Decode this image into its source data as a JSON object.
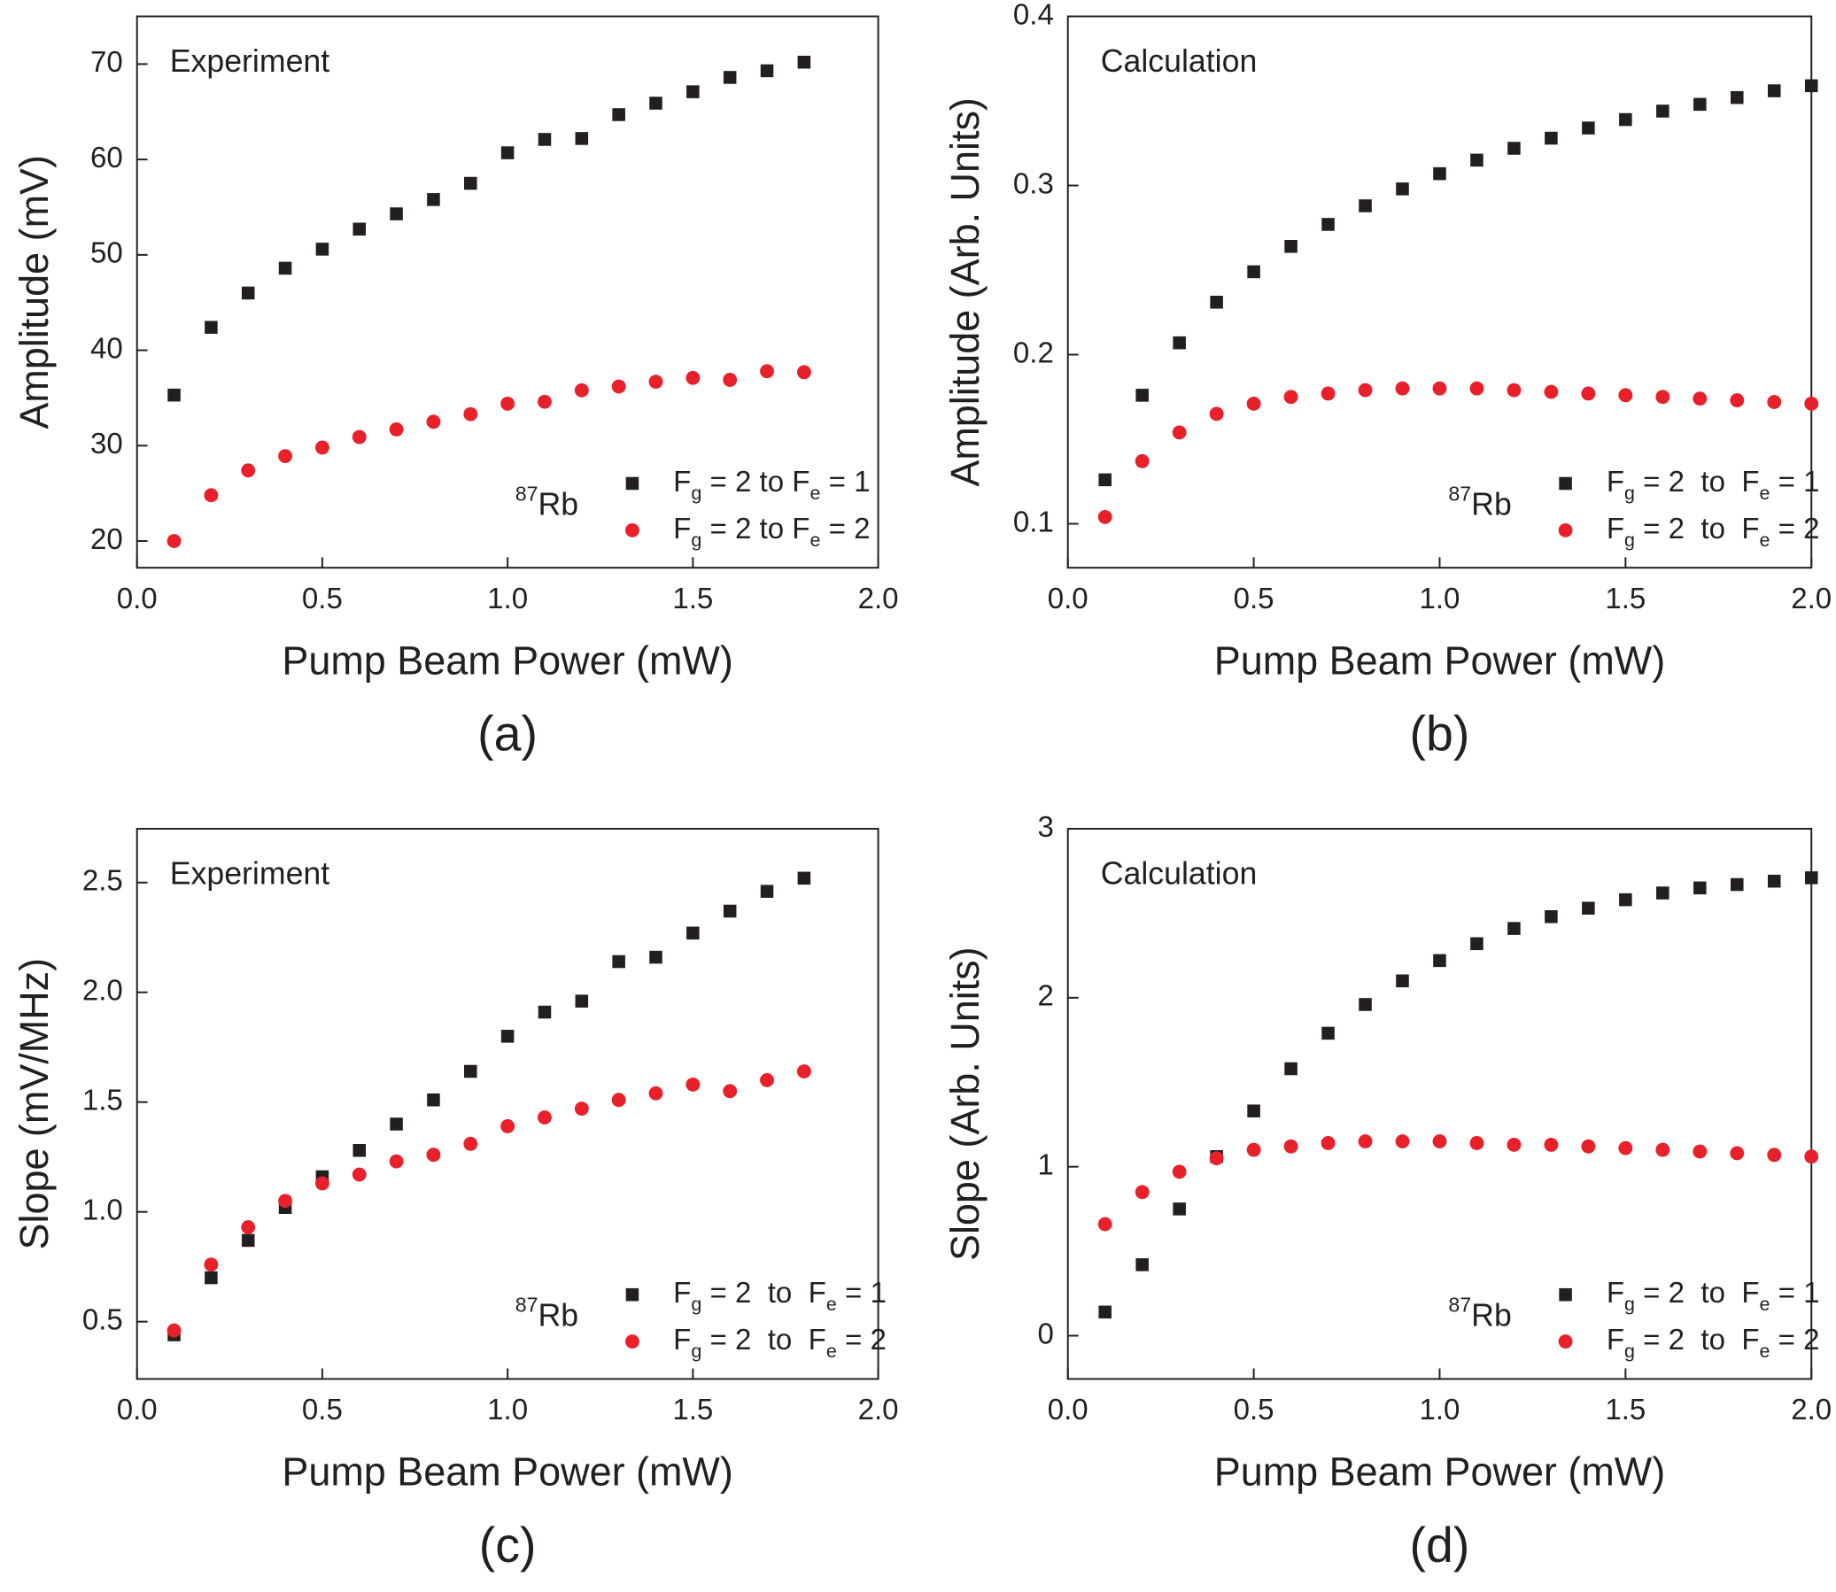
{
  "chart_data": [
    {
      "type": "scatter",
      "annotation": "Experiment",
      "note": "87Rb",
      "panel_label": "(a)",
      "xlabel": "Pump Beam Power (mW)",
      "ylabel": "Amplitude (mV)",
      "x": [
        0.1,
        0.2,
        0.3,
        0.4,
        0.5,
        0.6,
        0.7,
        0.8,
        0.9,
        1.0,
        1.1,
        1.2,
        1.3,
        1.4,
        1.5,
        1.6,
        1.7,
        1.8
      ],
      "series": [
        {
          "name": "Fg = 2 to Fe = 1",
          "color": "#231f20",
          "marker": "square",
          "values": [
            35.3,
            42.4,
            46,
            48.6,
            50.6,
            52.7,
            54.3,
            55.8,
            57.5,
            60.7,
            62.1,
            62.2,
            64.7,
            65.9,
            67.1,
            68.6,
            69.3,
            70.2
          ]
        },
        {
          "name": "Fg = 2 to Fe = 2",
          "color": "#e8202a",
          "marker": "circle",
          "values": [
            20,
            24.8,
            27.4,
            28.9,
            29.8,
            30.9,
            31.7,
            32.5,
            33.3,
            34.4,
            34.6,
            35.8,
            36.2,
            36.7,
            37.1,
            36.9,
            37.8,
            37.7
          ]
        }
      ],
      "xlim": [
        0,
        2
      ],
      "ylim": [
        17.2,
        75
      ],
      "xticks": [
        {
          "value": 0,
          "label": "0.0"
        },
        0.5,
        {
          "value": 1,
          "label": "1.0"
        },
        1.5,
        {
          "value": 2,
          "label": "2.0"
        }
      ],
      "yticks": [
        20,
        30,
        40,
        50,
        60,
        70
      ],
      "legend": "lower right"
    },
    {
      "type": "scatter",
      "annotation": "Calculation",
      "note": "87Rb",
      "panel_label": "(b)",
      "xlabel": "Pump Beam Power (mW)",
      "ylabel": "Amplitude (Arb. Units)",
      "x": [
        0.1,
        0.2,
        0.3,
        0.4,
        0.5,
        0.6,
        0.7,
        0.8,
        0.9,
        1.0,
        1.1,
        1.2,
        1.3,
        1.4,
        1.5,
        1.6,
        1.7,
        1.8,
        1.9,
        2.0
      ],
      "series": [
        {
          "name": "Fg = 2  to  Fe = 1",
          "color": "#231f20",
          "marker": "square",
          "values": [
            0.126,
            0.176,
            0.207,
            0.231,
            0.249,
            0.264,
            0.277,
            0.288,
            0.298,
            0.307,
            0.315,
            0.322,
            0.328,
            0.334,
            0.339,
            0.344,
            0.348,
            0.352,
            0.356,
            0.359
          ]
        },
        {
          "name": "Fg = 2  to  Fe = 2",
          "color": "#e8202a",
          "marker": "circle",
          "values": [
            0.104,
            0.137,
            0.154,
            0.165,
            0.171,
            0.175,
            0.177,
            0.179,
            0.18,
            0.18,
            0.18,
            0.179,
            0.178,
            0.177,
            0.176,
            0.175,
            0.174,
            0.173,
            0.172,
            0.171
          ]
        }
      ],
      "xlim": [
        0,
        2
      ],
      "ylim": [
        0.074,
        0.4
      ],
      "xticks": [
        {
          "value": 0,
          "label": "0.0"
        },
        0.5,
        {
          "value": 1,
          "label": "1.0"
        },
        1.5,
        {
          "value": 2,
          "label": "2.0"
        }
      ],
      "yticks": [
        0.1,
        0.2,
        0.3,
        0.4
      ],
      "legend": "lower right"
    },
    {
      "type": "scatter",
      "annotation": "Experiment",
      "note": "87Rb",
      "panel_label": "(c)",
      "xlabel": "Pump Beam Power (mW)",
      "ylabel": "Slope (mV/MHz)",
      "x": [
        0.1,
        0.2,
        0.3,
        0.4,
        0.5,
        0.6,
        0.7,
        0.8,
        0.9,
        1.0,
        1.1,
        1.2,
        1.3,
        1.4,
        1.5,
        1.6,
        1.7,
        1.8
      ],
      "series": [
        {
          "name": "Fg = 2  to  Fe = 1",
          "color": "#231f20",
          "marker": "square",
          "values": [
            0.44,
            0.7,
            0.87,
            1.02,
            1.16,
            1.28,
            1.4,
            1.51,
            1.64,
            1.8,
            1.91,
            1.96,
            2.14,
            2.16,
            2.27,
            2.37,
            2.46,
            2.52
          ]
        },
        {
          "name": "Fg = 2  to  Fe = 2",
          "color": "#e8202a",
          "marker": "circle",
          "values": [
            0.46,
            0.76,
            0.93,
            1.05,
            1.13,
            1.17,
            1.23,
            1.26,
            1.31,
            1.39,
            1.43,
            1.47,
            1.51,
            1.54,
            1.58,
            1.55,
            1.6,
            1.64
          ]
        }
      ],
      "xlim": [
        0,
        2
      ],
      "ylim": [
        0.239,
        2.745
      ],
      "xticks": [
        {
          "value": 0,
          "label": "0.0"
        },
        0.5,
        {
          "value": 1,
          "label": "1.0"
        },
        1.5,
        {
          "value": 2,
          "label": "2.0"
        }
      ],
      "yticks": [
        0.5,
        {
          "value": 1,
          "label": "1.0"
        },
        1.5,
        {
          "value": 2,
          "label": "2.0"
        },
        2.5
      ],
      "legend": "lower right"
    },
    {
      "type": "scatter",
      "annotation": "Calculation",
      "note": "87Rb",
      "panel_label": "(d)",
      "xlabel": "Pump Beam Power (mW)",
      "ylabel": "Slope (Arb. Units)",
      "x": [
        0.1,
        0.2,
        0.3,
        0.4,
        0.5,
        0.6,
        0.7,
        0.8,
        0.9,
        1.0,
        1.1,
        1.2,
        1.3,
        1.4,
        1.5,
        1.6,
        1.7,
        1.8,
        1.9,
        2.0
      ],
      "series": [
        {
          "name": "Fg = 2  to  Fe = 1",
          "color": "#231f20",
          "marker": "square",
          "values": [
            0.14,
            0.42,
            0.75,
            1.06,
            1.33,
            1.58,
            1.79,
            1.96,
            2.1,
            2.22,
            2.32,
            2.41,
            2.48,
            2.53,
            2.58,
            2.62,
            2.65,
            2.67,
            2.69,
            2.71
          ]
        },
        {
          "name": "Fg = 2  to  Fe = 2",
          "color": "#e8202a",
          "marker": "circle",
          "values": [
            0.66,
            0.85,
            0.97,
            1.05,
            1.1,
            1.12,
            1.14,
            1.15,
            1.15,
            1.15,
            1.14,
            1.13,
            1.13,
            1.12,
            1.11,
            1.1,
            1.09,
            1.08,
            1.07,
            1.06
          ]
        }
      ],
      "xlim": [
        0,
        2
      ],
      "ylim": [
        -0.256,
        3
      ],
      "xticks": [
        {
          "value": 0,
          "label": "0.0"
        },
        0.5,
        {
          "value": 1,
          "label": "1.0"
        },
        1.5,
        {
          "value": 2,
          "label": "2.0"
        }
      ],
      "yticks": [
        0,
        1,
        2,
        3
      ],
      "legend": "lower right"
    }
  ]
}
